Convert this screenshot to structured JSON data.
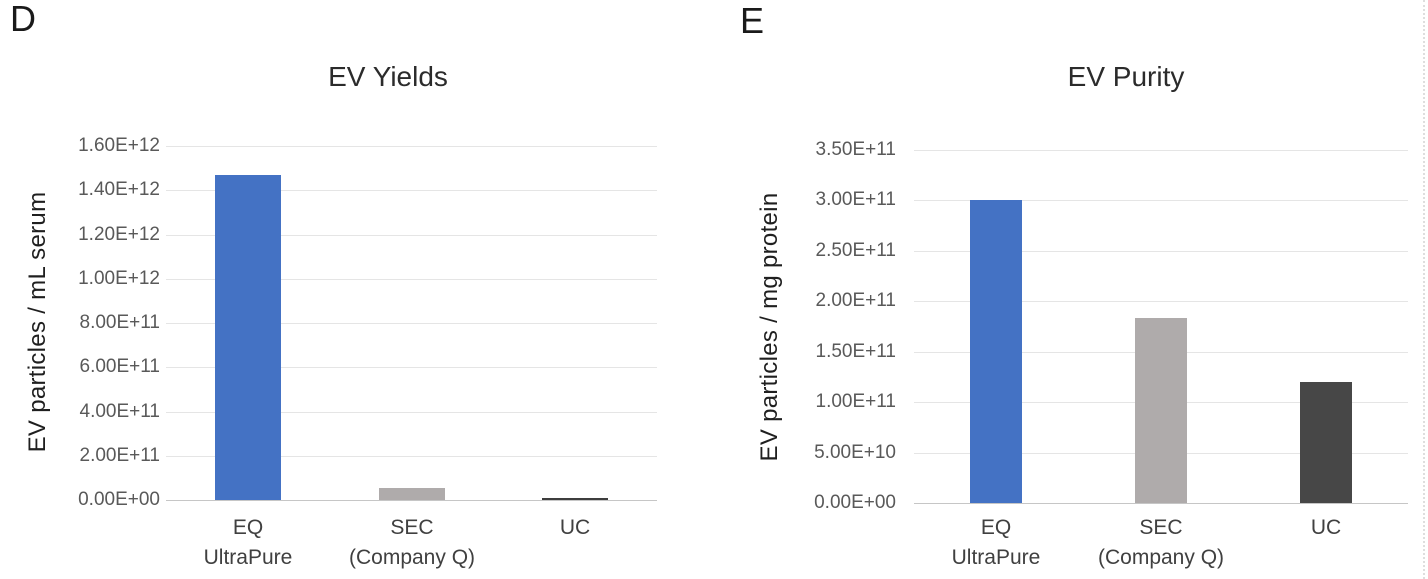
{
  "figure": {
    "panel_letters": [
      "D",
      "E"
    ],
    "colors": {
      "accent_blue": "#4472C4",
      "light_gray_bar": "#AFABAB",
      "dark_gray_bar": "#474747",
      "darkest_bar": "#3D3D3D",
      "gridline": "#E5E5E5",
      "axis_line": "#C6C6C6",
      "tick_text": "#595959",
      "title_text": "#2B2B2B"
    }
  },
  "chart_data": [
    {
      "type": "bar",
      "panel": "D",
      "title": "EV Yields",
      "xlabel": "",
      "ylabel": "EV particles / mL serum",
      "categories": [
        "EQ UltraPure",
        "SEC (Company Q)",
        "UC"
      ],
      "category_lines": [
        [
          "EQ",
          "UltraPure"
        ],
        [
          "SEC",
          "(Company Q)"
        ],
        [
          "UC"
        ]
      ],
      "values": [
        1470000000000.0,
        55000000000.0,
        10000000000.0
      ],
      "bar_colors": [
        "#4472C4",
        "#AFABAB",
        "#3D3D3D"
      ],
      "bar_patterns": [
        null,
        null,
        null
      ],
      "ylim": [
        0,
        1600000000000.0
      ],
      "ytick_step": 200000000000.0,
      "ytick_labels": [
        "1.60E+12",
        "1.40E+12",
        "1.20E+12",
        "1.00E+12",
        "8.00E+11",
        "6.00E+11",
        "4.00E+11",
        "2.00E+11",
        "0.00E+00"
      ],
      "grid": true,
      "legend": false
    },
    {
      "type": "bar",
      "panel": "E",
      "title": "EV Purity",
      "xlabel": "",
      "ylabel": "EV particles / mg protein",
      "categories": [
        "EQ UltraPure",
        "SEC (Company Q)",
        "UC"
      ],
      "category_lines": [
        [
          "EQ",
          "UltraPure"
        ],
        [
          "SEC",
          "(Company Q)"
        ],
        [
          "UC"
        ]
      ],
      "values": [
        300000000000.0,
        183000000000.0,
        120000000000.0
      ],
      "bar_colors": [
        "#4472C4",
        "#AFABAB",
        "#474747"
      ],
      "bar_patterns": [
        null,
        null,
        "dots"
      ],
      "ylim": [
        0,
        350000000000.0
      ],
      "ytick_step": 50000000000.0,
      "ytick_labels": [
        "3.50E+11",
        "3.00E+11",
        "2.50E+11",
        "2.00E+11",
        "1.50E+11",
        "1.00E+11",
        "5.00E+10",
        "0.00E+00"
      ],
      "grid": true,
      "legend": false
    }
  ]
}
